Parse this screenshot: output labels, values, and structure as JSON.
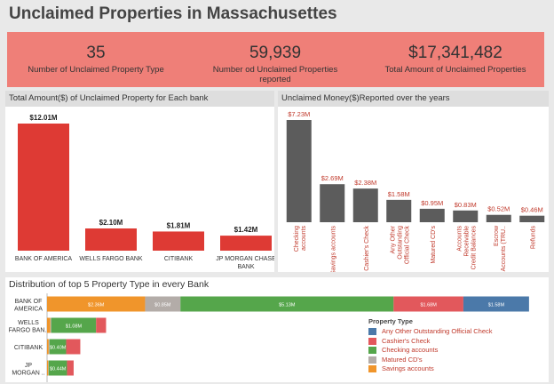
{
  "page": {
    "title": "Unclaimed Properties in Massachusettes"
  },
  "kpis": [
    {
      "value": "35",
      "label": "Number of Unclaimed Property Type"
    },
    {
      "value": "59,939",
      "label": "Number od Unclaimed Properties reported"
    },
    {
      "value": "$17,341,482",
      "label": "Total Amount of Unclaimed Properties"
    }
  ],
  "colors": {
    "red_bar": "#de3a34",
    "grey_bar": "#5c5c5c",
    "kpi_bg": "#ef7f78",
    "label_red": "#c0392b"
  },
  "chart_data": [
    {
      "type": "bar",
      "title": "Total Amount($) of Unclaimed Property for Each bank",
      "categories": [
        "BANK OF AMERICA",
        "WELLS FARGO BANK",
        "CITIBANK",
        "JP MORGAN CHASE BANK"
      ],
      "values": [
        12.01,
        2.1,
        1.81,
        1.42
      ],
      "labels": [
        "$12.01M",
        "$2.10M",
        "$1.81M",
        "$1.42M"
      ],
      "ylim": [
        0,
        12.01
      ]
    },
    {
      "type": "bar",
      "title": "Unclaimed Money($)Reported over the years",
      "categories": [
        "Checking accounts",
        "Savings accounts",
        "Cashier's Check",
        "Any Other Outstanding Official Check",
        "Matured CD's",
        "Accounts Receivable Credit Balances",
        "Escrow Accounts (TRU..",
        "Refunds"
      ],
      "values": [
        7.23,
        2.69,
        2.38,
        1.58,
        0.95,
        0.83,
        0.52,
        0.46
      ],
      "labels": [
        "$7.23M",
        "$2.69M",
        "$2.38M",
        "$1.58M",
        "$0.95M",
        "$0.83M",
        "$0.52M",
        "$0.46M"
      ],
      "ylim": [
        0,
        7.23
      ]
    },
    {
      "type": "bar",
      "orientation": "horizontal-stacked",
      "title": "Distribution of top 5 Property Type in every Bank",
      "categories": [
        "BANK OF AMERICA",
        "WELLS FARGO BANK",
        "CITIBANK",
        "JP MORGAN CHASE BANK"
      ],
      "category_labels": [
        [
          "BANK OF",
          "AMERICA"
        ],
        [
          "WELLS",
          "FARGO BAN.."
        ],
        [
          "CITIBANK"
        ],
        [
          "JP",
          "MORGAN .."
        ]
      ],
      "legend_title": "Property Type",
      "legend_position": "bottom-right",
      "series": [
        {
          "name": "Savings accounts",
          "color": "#f0952b",
          "values": [
            2.36,
            0.08,
            0.04,
            0.03
          ],
          "labels": [
            "$2.36M",
            "",
            "",
            ""
          ]
        },
        {
          "name": "Matured CD's",
          "color": "#b3aca8",
          "values": [
            0.85,
            0.02,
            0.02,
            0.01
          ],
          "labels": [
            "$0.85M",
            "",
            "",
            ""
          ]
        },
        {
          "name": "Checking accounts",
          "color": "#55a64b",
          "values": [
            5.13,
            1.08,
            0.4,
            0.44
          ],
          "labels": [
            "$5.13M",
            "$1.08M",
            "$0.40M",
            "$0.44M"
          ]
        },
        {
          "name": "Cashier's Check",
          "color": "#e2585c",
          "values": [
            1.68,
            0.24,
            0.34,
            0.16
          ],
          "labels": [
            "$1.68M",
            "",
            "",
            ""
          ]
        },
        {
          "name": "Any Other Outstanding Official Check",
          "color": "#4b79a9",
          "values": [
            1.58,
            0,
            0,
            0
          ],
          "labels": [
            "$1.58M",
            "",
            "",
            ""
          ]
        }
      ],
      "legend_order": [
        "Any Other Outstanding Official Check",
        "Cashier's Check",
        "Checking accounts",
        "Matured CD's",
        "Savings accounts"
      ]
    }
  ]
}
